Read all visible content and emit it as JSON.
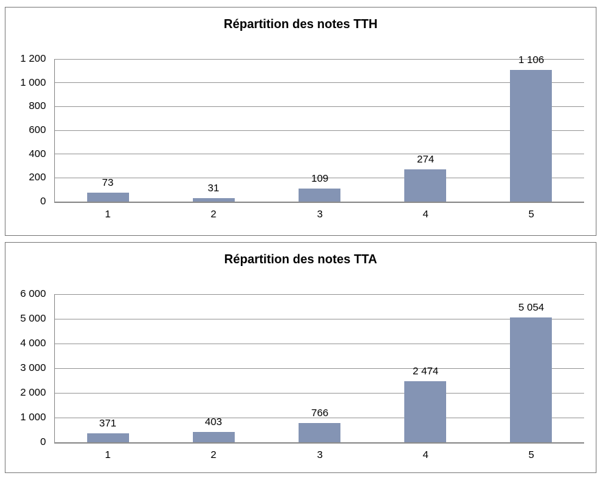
{
  "colors": {
    "bar": "#8494b4",
    "gridline": "#9d9d9d",
    "axis": "#8e8e8e",
    "chart_frame_border": "#808080",
    "text": "#000000",
    "background": "#ffffff"
  },
  "chart_data": [
    {
      "type": "bar",
      "title": "Répartition des notes TTH",
      "categories": [
        "1",
        "2",
        "3",
        "4",
        "5"
      ],
      "values": [
        73,
        31,
        109,
        274,
        1106
      ],
      "value_labels": [
        "73",
        "31",
        "109",
        "274",
        "1 106"
      ],
      "xlabel": "",
      "ylabel": "",
      "ylim": [
        0,
        1200
      ],
      "ytick_step": 200,
      "ytick_labels": [
        "0",
        "200",
        "400",
        "600",
        "800",
        "1 000",
        "1 200"
      ],
      "grid": "horizontal-major",
      "legend": "none"
    },
    {
      "type": "bar",
      "title": "Répartition des notes TTA",
      "categories": [
        "1",
        "2",
        "3",
        "4",
        "5"
      ],
      "values": [
        371,
        403,
        766,
        2474,
        5054
      ],
      "value_labels": [
        "371",
        "403",
        "766",
        "2 474",
        "5 054"
      ],
      "xlabel": "",
      "ylabel": "",
      "ylim": [
        0,
        6000
      ],
      "ytick_step": 1000,
      "ytick_labels": [
        "0",
        "1 000",
        "2 000",
        "3 000",
        "4 000",
        "5 000",
        "6 000"
      ],
      "grid": "horizontal-major",
      "legend": "none"
    }
  ]
}
